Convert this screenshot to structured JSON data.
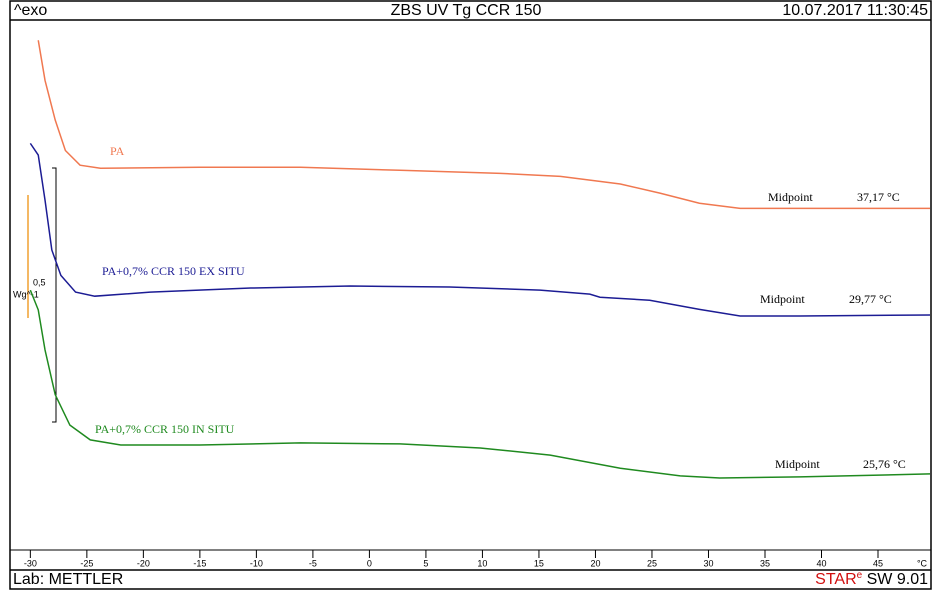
{
  "chart_data": {
    "type": "line",
    "corner_label": "^exo",
    "title": "ZBS UV Tg CCR 150",
    "timestamp": "10.07.2017 11:30:45",
    "footer_left": "Lab: METTLER",
    "footer_right_brand": "STAR",
    "footer_right_sup": "e",
    "footer_right_version": " SW 9.01",
    "x_unit": "°C",
    "xlim": [
      -31.8,
      49.6
    ],
    "xticks": [
      -30,
      -25,
      -20,
      -15,
      -10,
      -5,
      0,
      5,
      10,
      15,
      20,
      25,
      30,
      35,
      40,
      45
    ],
    "ylim": [
      0,
      1.04
    ],
    "scale_bar": {
      "value_label": "0,5",
      "unit": "Wg^-1"
    },
    "series": [
      {
        "name": "PA",
        "color": "#f07850",
        "x": [
          -29.3,
          -28.7,
          -27.8,
          -26.9,
          -25.6,
          -23.8,
          -15.0,
          -6.1,
          2.7,
          11.6,
          16.9,
          22.2,
          25.7,
          29.2,
          32.8,
          38.1,
          49.6
        ],
        "values": [
          1.0,
          0.921,
          0.843,
          0.783,
          0.754,
          0.748,
          0.75,
          0.75,
          0.744,
          0.738,
          0.732,
          0.717,
          0.699,
          0.679,
          0.669,
          0.669,
          0.669
        ],
        "annotation": {
          "label": "Midpoint",
          "value": "37,17 °C"
        }
      },
      {
        "name": "PA+0,7% CCR 150 EX SITU",
        "color": "#1c1c94",
        "x": [
          -30,
          -29.3,
          -28.7,
          -28.1,
          -27.3,
          -26.0,
          -24.3,
          -19.4,
          -10.5,
          -1.7,
          7.1,
          15.1,
          19.5,
          20.4,
          24.8,
          29.2,
          32.8,
          38.1,
          49.6
        ],
        "values": [
          0.797,
          0.774,
          0.685,
          0.587,
          0.537,
          0.504,
          0.496,
          0.504,
          0.512,
          0.516,
          0.514,
          0.508,
          0.5,
          0.494,
          0.488,
          0.47,
          0.457,
          0.457,
          0.459
        ],
        "annotation": {
          "label": "Midpoint",
          "value": "29,77 °C"
        }
      },
      {
        "name": "PA+0,7% CCR 150 IN SITU",
        "color": "#1f8a1f",
        "x": [
          -30,
          -29.3,
          -28.7,
          -27.8,
          -26.5,
          -24.7,
          -22.0,
          -15.0,
          -6.1,
          2.7,
          9.8,
          16.0,
          22.2,
          27.5,
          31.0,
          38.1,
          49.6
        ],
        "values": [
          0.508,
          0.469,
          0.39,
          0.302,
          0.242,
          0.213,
          0.203,
          0.203,
          0.207,
          0.205,
          0.197,
          0.183,
          0.157,
          0.142,
          0.138,
          0.14,
          0.146
        ],
        "annotation": {
          "label": "Midpoint",
          "value": "25,76 °C"
        }
      }
    ]
  }
}
